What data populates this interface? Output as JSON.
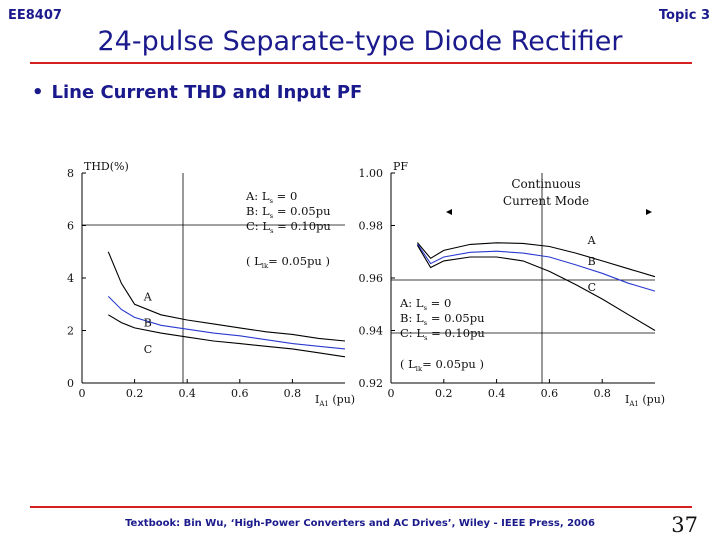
{
  "header": {
    "course": "EE8407",
    "topic": "Topic 3"
  },
  "title": "24-pulse Separate-type Diode Rectifier",
  "bullet": "Line Current THD and Input PF",
  "footer": "Textbook: Bin Wu, ‘High-Power Converters and AC Drives’, Wiley - IEEE Press, 2006",
  "page_number": "37",
  "colors": {
    "accent": "#1a1a8c",
    "rule": "#d42020",
    "series_b": "#2a3ad0"
  },
  "chart_data": [
    {
      "type": "line",
      "ylabel": "THD(%)",
      "xlabel_main": "I",
      "xlabel_sub": "A1",
      "xlabel_unit": "(pu)",
      "xlim": [
        0,
        1.0
      ],
      "ylim": [
        0,
        8
      ],
      "xticks": [
        "0",
        "0.2",
        "0.4",
        "0.6",
        "0.8"
      ],
      "yticks": [
        "0",
        "2",
        "4",
        "6",
        "8"
      ],
      "legend": [
        "A: L_s = 0",
        "B: L_s = 0.05pu",
        "C: L_s = 0.10pu",
        "( L_lk = 0.05pu )"
      ],
      "legend_parts": [
        {
          "pre": "A: L",
          "sub": "s",
          "post": " = 0"
        },
        {
          "pre": "B: L",
          "sub": "s",
          "post": " = 0.05pu"
        },
        {
          "pre": "C: L",
          "sub": "s",
          "post": " = 0.10pu"
        },
        {
          "pre": "( L",
          "sub": "lk",
          "post": "= 0.05pu )"
        }
      ],
      "series": [
        {
          "name": "A",
          "color": "#000000",
          "x": [
            0.1,
            0.15,
            0.2,
            0.3,
            0.4,
            0.5,
            0.6,
            0.7,
            0.8,
            0.9,
            1.0
          ],
          "values": [
            5.0,
            3.8,
            3.0,
            2.6,
            2.4,
            2.25,
            2.1,
            1.95,
            1.85,
            1.7,
            1.6
          ]
        },
        {
          "name": "B",
          "color": "#2a3ad0",
          "x": [
            0.1,
            0.15,
            0.2,
            0.3,
            0.4,
            0.5,
            0.6,
            0.7,
            0.8,
            0.9,
            1.0
          ],
          "values": [
            3.3,
            2.8,
            2.5,
            2.2,
            2.05,
            1.9,
            1.8,
            1.65,
            1.5,
            1.4,
            1.3
          ]
        },
        {
          "name": "C",
          "color": "#000000",
          "x": [
            0.1,
            0.15,
            0.2,
            0.3,
            0.4,
            0.5,
            0.6,
            0.7,
            0.8,
            0.9,
            1.0
          ],
          "values": [
            2.6,
            2.3,
            2.1,
            1.9,
            1.75,
            1.6,
            1.5,
            1.4,
            1.3,
            1.15,
            1.0
          ]
        }
      ],
      "series_labels": [
        {
          "name": "A",
          "x": 0.25,
          "y": 3.3
        },
        {
          "name": "B",
          "x": 0.25,
          "y": 2.3
        },
        {
          "name": "C",
          "x": 0.25,
          "y": 1.3
        }
      ]
    },
    {
      "type": "line",
      "ylabel": "PF",
      "xlabel_main": "I",
      "xlabel_sub": "A1",
      "xlabel_unit": "(pu)",
      "xlim": [
        0,
        1.0
      ],
      "ylim": [
        0.92,
        1.0
      ],
      "xticks": [
        "0",
        "0.2",
        "0.4",
        "0.6",
        "0.8"
      ],
      "yticks": [
        "0.92",
        "0.94",
        "0.96",
        "0.98",
        "1.00"
      ],
      "region_label": [
        "Continuous",
        "Current Mode"
      ],
      "legend": [
        "A: L_s = 0",
        "B: L_s = 0.05pu",
        "C: L_s = 0.10pu",
        "( L_lk = 0.05pu )"
      ],
      "legend_parts": [
        {
          "pre": "A: L",
          "sub": "s",
          "post": " = 0"
        },
        {
          "pre": "B: L",
          "sub": "s",
          "post": " = 0.05pu"
        },
        {
          "pre": "C: L",
          "sub": "s",
          "post": " = 0.10pu"
        },
        {
          "pre": "( L",
          "sub": "lk",
          "post": "= 0.05pu )"
        }
      ],
      "series": [
        {
          "name": "A",
          "color": "#000000",
          "x": [
            0.1,
            0.15,
            0.2,
            0.3,
            0.4,
            0.5,
            0.6,
            0.7,
            0.8,
            0.9,
            1.0
          ],
          "values": [
            0.9735,
            0.9675,
            0.9705,
            0.9728,
            0.9734,
            0.9732,
            0.972,
            0.9695,
            0.9665,
            0.9635,
            0.9605
          ]
        },
        {
          "name": "B",
          "color": "#2a3ad0",
          "x": [
            0.1,
            0.15,
            0.2,
            0.3,
            0.4,
            0.5,
            0.6,
            0.7,
            0.8,
            0.9,
            1.0
          ],
          "values": [
            0.973,
            0.9655,
            0.968,
            0.9698,
            0.9702,
            0.9695,
            0.968,
            0.965,
            0.9618,
            0.958,
            0.955
          ]
        },
        {
          "name": "C",
          "color": "#000000",
          "x": [
            0.1,
            0.15,
            0.2,
            0.3,
            0.4,
            0.5,
            0.6,
            0.7,
            0.8,
            0.9,
            1.0
          ],
          "values": [
            0.9725,
            0.964,
            0.9665,
            0.968,
            0.968,
            0.9665,
            0.9625,
            0.9575,
            0.952,
            0.946,
            0.94
          ]
        }
      ],
      "series_labels": [
        {
          "name": "A",
          "x": 0.76,
          "y": 0.9745
        },
        {
          "name": "B",
          "x": 0.76,
          "y": 0.9665
        },
        {
          "name": "C",
          "x": 0.76,
          "y": 0.9565
        }
      ]
    }
  ]
}
